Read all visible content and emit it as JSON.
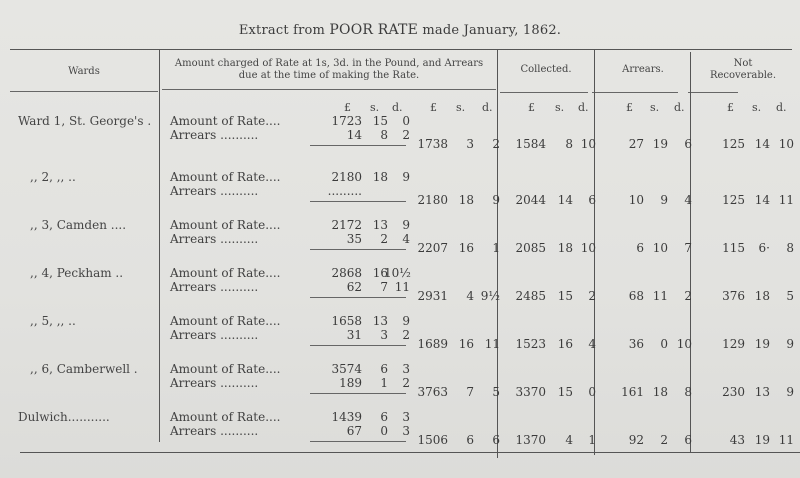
{
  "title": {
    "prefix": "Extract from ",
    "caps": "POOR RATE",
    "suffix": " made January, 1862."
  },
  "headers": {
    "wards": "Wards",
    "amount_charged_line1": "Amount charged of Rate at 1s, 3d. in the Pound, and Arrears",
    "amount_charged_line2": "due at the time of making the Rate.",
    "collected": "Collected.",
    "arrears": "Arrears.",
    "not_recoverable_line1": "Not",
    "not_recoverable_line2": "Recoverable."
  },
  "units": {
    "pound": "£",
    "shillings": "s.",
    "pence": "d."
  },
  "labels": {
    "amount_of_rate": "Amount of Rate....",
    "arrears": "Arrears .........."
  },
  "rows": [
    {
      "ward": "Ward 1, St. George's .",
      "rate": [
        "1723",
        "15",
        "0"
      ],
      "arrears_due": [
        "14",
        "8",
        "2"
      ],
      "total": [
        "1738",
        "3",
        "2"
      ],
      "collected": [
        "1584",
        "8",
        "10"
      ],
      "arrears": [
        "27",
        "19",
        "6"
      ],
      "not_recoverable": [
        "125",
        "14",
        "10"
      ]
    },
    {
      "ward": ",, 2, ,, ..",
      "rate": [
        "2180",
        "18",
        "9"
      ],
      "arrears_due": [
        ".........",
        "",
        ""
      ],
      "total": [
        "2180",
        "18",
        "9"
      ],
      "collected": [
        "2044",
        "14",
        "6"
      ],
      "arrears": [
        "10",
        "9",
        "4"
      ],
      "not_recoverable": [
        "125",
        "14",
        "11"
      ]
    },
    {
      "ward": ",, 3, Camden ....",
      "rate": [
        "2172",
        "13",
        "9"
      ],
      "arrears_due": [
        "35",
        "2",
        "4"
      ],
      "total": [
        "2207",
        "16",
        "1"
      ],
      "collected": [
        "2085",
        "18",
        "10"
      ],
      "arrears": [
        "6",
        "10",
        "7"
      ],
      "not_recoverable": [
        "115",
        "6·",
        "8"
      ]
    },
    {
      "ward": ",, 4, Peckham ..",
      "rate": [
        "2868",
        "16",
        "10½"
      ],
      "arrears_due": [
        "62",
        "7",
        "11"
      ],
      "total": [
        "2931",
        "4",
        "9½"
      ],
      "collected": [
        "2485",
        "15",
        "2"
      ],
      "arrears": [
        "68",
        "11",
        "2"
      ],
      "not_recoverable": [
        "376",
        "18",
        "5"
      ]
    },
    {
      "ward": ",, 5, ,, ..",
      "rate": [
        "1658",
        "13",
        "9"
      ],
      "arrears_due": [
        "31",
        "3",
        "2"
      ],
      "total": [
        "1689",
        "16",
        "11"
      ],
      "collected": [
        "1523",
        "16",
        "4"
      ],
      "arrears": [
        "36",
        "0",
        "10"
      ],
      "not_recoverable": [
        "129",
        "19",
        "9"
      ]
    },
    {
      "ward": ",, 6, Camberwell .",
      "rate": [
        "3574",
        "6",
        "3"
      ],
      "arrears_due": [
        "189",
        "1",
        "2"
      ],
      "total": [
        "3763",
        "7",
        "5"
      ],
      "collected": [
        "3370",
        "15",
        "0"
      ],
      "arrears": [
        "161",
        "18",
        "8"
      ],
      "not_recoverable": [
        "230",
        "13",
        "9"
      ]
    },
    {
      "ward": "Dulwich...........",
      "rate": [
        "1439",
        "6",
        "3"
      ],
      "arrears_due": [
        "67",
        "0",
        "3"
      ],
      "total": [
        "1506",
        "6",
        "6"
      ],
      "collected": [
        "1370",
        "4",
        "1"
      ],
      "arrears": [
        "92",
        "2",
        "6"
      ],
      "not_recoverable": [
        "43",
        "19",
        "11"
      ]
    }
  ]
}
